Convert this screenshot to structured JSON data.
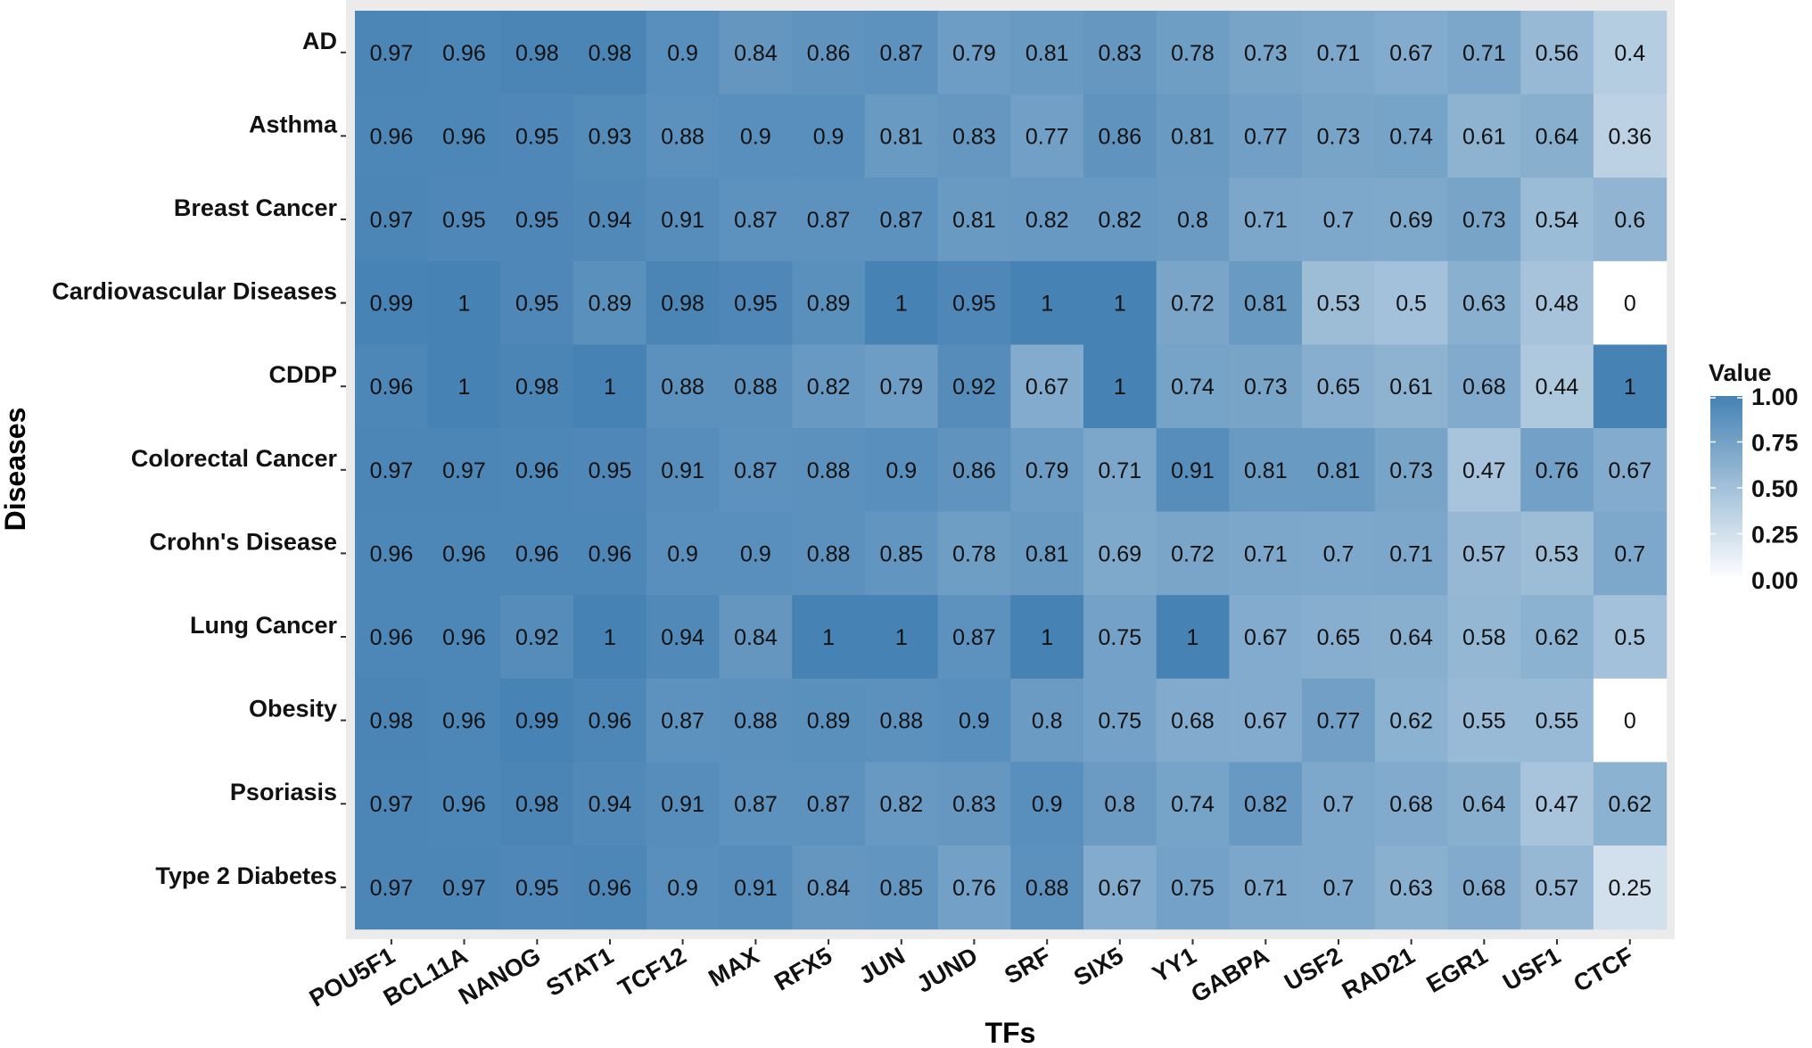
{
  "chart_data": {
    "type": "heatmap",
    "title": "",
    "xlabel": "TFs",
    "ylabel": "Diseases",
    "legend_title": "Value",
    "legend_position": "right",
    "legend_ticks": [
      "1.00",
      "0.75",
      "0.50",
      "0.25",
      "0.00"
    ],
    "value_range": [
      0,
      1
    ],
    "color_low": "#ffffff",
    "color_high": "#4682b4",
    "panel_background": "#ebebeb",
    "x_categories": [
      "POU5F1",
      "BCL11A",
      "NANOG",
      "STAT1",
      "TCF12",
      "MAX",
      "RFX5",
      "JUN",
      "JUND",
      "SRF",
      "SIX5",
      "YY1",
      "GABPA",
      "USF2",
      "RAD21",
      "EGR1",
      "USF1",
      "CTCF"
    ],
    "y_categories": [
      "AD",
      "Asthma",
      "Breast Cancer",
      "Cardiovascular Diseases",
      "CDDP",
      "Colorectal Cancer",
      "Crohn's Disease",
      "Lung Cancer",
      "Obesity",
      "Psoriasis",
      "Type 2 Diabetes"
    ],
    "values": [
      [
        "0.97",
        "0.96",
        "0.98",
        "0.98",
        "0.9",
        "0.84",
        "0.86",
        "0.87",
        "0.79",
        "0.81",
        "0.83",
        "0.78",
        "0.73",
        "0.71",
        "0.67",
        "0.71",
        "0.56",
        "0.4"
      ],
      [
        "0.96",
        "0.96",
        "0.95",
        "0.93",
        "0.88",
        "0.9",
        "0.9",
        "0.81",
        "0.83",
        "0.77",
        "0.86",
        "0.81",
        "0.77",
        "0.73",
        "0.74",
        "0.61",
        "0.64",
        "0.36"
      ],
      [
        "0.97",
        "0.95",
        "0.95",
        "0.94",
        "0.91",
        "0.87",
        "0.87",
        "0.87",
        "0.81",
        "0.82",
        "0.82",
        "0.8",
        "0.71",
        "0.7",
        "0.69",
        "0.73",
        "0.54",
        "0.6"
      ],
      [
        "0.99",
        "1",
        "0.95",
        "0.89",
        "0.98",
        "0.95",
        "0.89",
        "1",
        "0.95",
        "1",
        "1",
        "0.72",
        "0.81",
        "0.53",
        "0.5",
        "0.63",
        "0.48",
        "0"
      ],
      [
        "0.96",
        "1",
        "0.98",
        "1",
        "0.88",
        "0.88",
        "0.82",
        "0.79",
        "0.92",
        "0.67",
        "1",
        "0.74",
        "0.73",
        "0.65",
        "0.61",
        "0.68",
        "0.44",
        "1"
      ],
      [
        "0.97",
        "0.97",
        "0.96",
        "0.95",
        "0.91",
        "0.87",
        "0.88",
        "0.9",
        "0.86",
        "0.79",
        "0.71",
        "0.91",
        "0.81",
        "0.81",
        "0.73",
        "0.47",
        "0.76",
        "0.67"
      ],
      [
        "0.96",
        "0.96",
        "0.96",
        "0.96",
        "0.9",
        "0.9",
        "0.88",
        "0.85",
        "0.78",
        "0.81",
        "0.69",
        "0.72",
        "0.71",
        "0.7",
        "0.71",
        "0.57",
        "0.53",
        "0.7"
      ],
      [
        "0.96",
        "0.96",
        "0.92",
        "1",
        "0.94",
        "0.84",
        "1",
        "1",
        "0.87",
        "1",
        "0.75",
        "1",
        "0.67",
        "0.65",
        "0.64",
        "0.58",
        "0.62",
        "0.5"
      ],
      [
        "0.98",
        "0.96",
        "0.99",
        "0.96",
        "0.87",
        "0.88",
        "0.89",
        "0.88",
        "0.9",
        "0.8",
        "0.75",
        "0.68",
        "0.67",
        "0.77",
        "0.62",
        "0.55",
        "0.55",
        "0"
      ],
      [
        "0.97",
        "0.96",
        "0.98",
        "0.94",
        "0.91",
        "0.87",
        "0.87",
        "0.82",
        "0.83",
        "0.9",
        "0.8",
        "0.74",
        "0.82",
        "0.7",
        "0.68",
        "0.64",
        "0.47",
        "0.62"
      ],
      [
        "0.97",
        "0.97",
        "0.95",
        "0.96",
        "0.9",
        "0.91",
        "0.84",
        "0.85",
        "0.76",
        "0.88",
        "0.67",
        "0.75",
        "0.71",
        "0.7",
        "0.63",
        "0.68",
        "0.57",
        "0.25"
      ]
    ]
  }
}
